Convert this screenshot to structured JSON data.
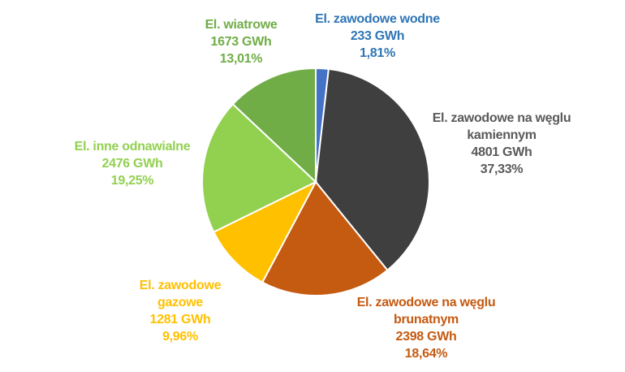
{
  "chart_data": {
    "type": "pie",
    "title": "",
    "unit": "GWh",
    "slices": [
      {
        "label_lines": [
          "El. zawodowe wodne"
        ],
        "value": 233,
        "value_text": "233 GWh",
        "percent": 1.81,
        "percent_text": "1,81%",
        "color": "#4472C4",
        "label_color": "#2E75B6"
      },
      {
        "label_lines": [
          "El. zawodowe na węglu",
          "kamiennym"
        ],
        "value": 4801,
        "value_text": "4801 GWh",
        "percent": 37.33,
        "percent_text": "37,33%",
        "color": "#3F3F3F",
        "label_color": "#595959"
      },
      {
        "label_lines": [
          "El. zawodowe na węglu",
          "brunatnym"
        ],
        "value": 2398,
        "value_text": "2398 GWh",
        "percent": 18.64,
        "percent_text": "18,64%",
        "color": "#C55A11",
        "label_color": "#C55A11"
      },
      {
        "label_lines": [
          "El. zawodowe",
          "gazowe"
        ],
        "value": 1281,
        "value_text": "1281 GWh",
        "percent": 9.96,
        "percent_text": "9,96%",
        "color": "#FFC000",
        "label_color": "#FFC000"
      },
      {
        "label_lines": [
          "El. inne odnawialne"
        ],
        "value": 2476,
        "value_text": "2476 GWh",
        "percent": 19.25,
        "percent_text": "19,25%",
        "color": "#92D050",
        "label_color": "#92D050"
      },
      {
        "label_lines": [
          "El. wiatrowe"
        ],
        "value": 1673,
        "value_text": "1673 GWh",
        "percent": 13.01,
        "percent_text": "13,01%",
        "color": "#70AD47",
        "label_color": "#70AD47"
      }
    ]
  }
}
